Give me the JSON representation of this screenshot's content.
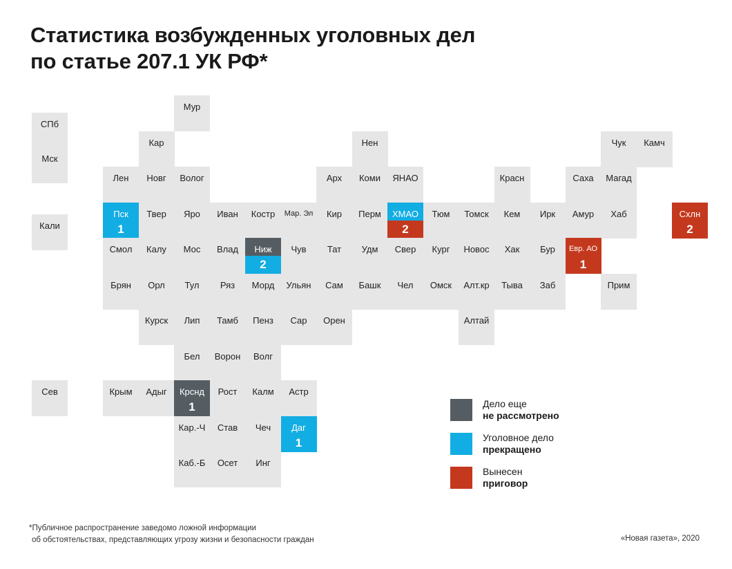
{
  "title": {
    "line1": "Статистика возбужденных уголовных дел",
    "line2": "по статье 207.1 УК РФ*"
  },
  "colors": {
    "empty": "#e6e6e7",
    "pending": "#555d62",
    "closed": "#12ade3",
    "verdict": "#c4391e"
  },
  "regions": [
    {
      "label": "Мур",
      "col": 4,
      "row": 0,
      "status": "none",
      "count": ""
    },
    {
      "label": "СПб",
      "col": 0,
      "row": 0,
      "status": "none",
      "count": ""
    },
    {
      "label": "Мск",
      "col": 0,
      "row": 1,
      "status": "none",
      "count": ""
    },
    {
      "label": "Кар",
      "col": 3,
      "row": 1,
      "status": "none",
      "count": ""
    },
    {
      "label": "Нен",
      "col": 9,
      "row": 1,
      "status": "none",
      "count": ""
    },
    {
      "label": "Чук",
      "col": 16,
      "row": 1,
      "status": "none",
      "count": ""
    },
    {
      "label": "Камч",
      "col": 17,
      "row": 1,
      "status": "none",
      "count": ""
    },
    {
      "label": "Лен",
      "col": 2,
      "row": 2,
      "status": "none",
      "count": ""
    },
    {
      "label": "Новг",
      "col": 3,
      "row": 2,
      "status": "none",
      "count": ""
    },
    {
      "label": "Волог",
      "col": 4,
      "row": 2,
      "status": "none",
      "count": ""
    },
    {
      "label": "Арх",
      "col": 8,
      "row": 2,
      "status": "none",
      "count": ""
    },
    {
      "label": "Коми",
      "col": 9,
      "row": 2,
      "status": "none",
      "count": ""
    },
    {
      "label": "ЯНАО",
      "col": 10,
      "row": 2,
      "status": "none",
      "count": ""
    },
    {
      "label": "Красн",
      "col": 13,
      "row": 2,
      "status": "none",
      "count": ""
    },
    {
      "label": "Саха",
      "col": 15,
      "row": 2,
      "status": "none",
      "count": ""
    },
    {
      "label": "Магад",
      "col": 16,
      "row": 2,
      "status": "none",
      "count": ""
    },
    {
      "label": "Кали",
      "col": 0,
      "row": 3,
      "status": "none",
      "count": ""
    },
    {
      "label": "Пск",
      "col": 2,
      "row": 3,
      "status": "closed",
      "count": "1"
    },
    {
      "label": "Твер",
      "col": 3,
      "row": 3,
      "status": "none",
      "count": ""
    },
    {
      "label": "Яро",
      "col": 4,
      "row": 3,
      "status": "none",
      "count": ""
    },
    {
      "label": "Иван",
      "col": 5,
      "row": 3,
      "status": "none",
      "count": ""
    },
    {
      "label": "Костр",
      "col": 6,
      "row": 3,
      "status": "none",
      "count": ""
    },
    {
      "label": "Мар. Эл",
      "col": 7,
      "row": 3,
      "status": "none",
      "count": "",
      "small": true
    },
    {
      "label": "Кир",
      "col": 8,
      "row": 3,
      "status": "none",
      "count": ""
    },
    {
      "label": "Перм",
      "col": 9,
      "row": 3,
      "status": "none",
      "count": ""
    },
    {
      "label": "ХМАО",
      "col": 10,
      "row": 3,
      "status": "closed+verdict",
      "count": "2"
    },
    {
      "label": "Тюм",
      "col": 11,
      "row": 3,
      "status": "none",
      "count": ""
    },
    {
      "label": "Томск",
      "col": 12,
      "row": 3,
      "status": "none",
      "count": ""
    },
    {
      "label": "Кем",
      "col": 13,
      "row": 3,
      "status": "none",
      "count": ""
    },
    {
      "label": "Ирк",
      "col": 14,
      "row": 3,
      "status": "none",
      "count": ""
    },
    {
      "label": "Амур",
      "col": 15,
      "row": 3,
      "status": "none",
      "count": ""
    },
    {
      "label": "Хаб",
      "col": 16,
      "row": 3,
      "status": "none",
      "count": ""
    },
    {
      "label": "Схлн",
      "col": 18,
      "row": 3,
      "status": "verdict",
      "count": "2"
    },
    {
      "label": "Смол",
      "col": 2,
      "row": 4,
      "status": "none",
      "count": ""
    },
    {
      "label": "Калу",
      "col": 3,
      "row": 4,
      "status": "none",
      "count": ""
    },
    {
      "label": "Мос",
      "col": 4,
      "row": 4,
      "status": "none",
      "count": ""
    },
    {
      "label": "Влад",
      "col": 5,
      "row": 4,
      "status": "none",
      "count": ""
    },
    {
      "label": "Ниж",
      "col": 6,
      "row": 4,
      "status": "pending+closed",
      "count": "2"
    },
    {
      "label": "Чув",
      "col": 7,
      "row": 4,
      "status": "none",
      "count": ""
    },
    {
      "label": "Тат",
      "col": 8,
      "row": 4,
      "status": "none",
      "count": ""
    },
    {
      "label": "Удм",
      "col": 9,
      "row": 4,
      "status": "none",
      "count": ""
    },
    {
      "label": "Свер",
      "col": 10,
      "row": 4,
      "status": "none",
      "count": ""
    },
    {
      "label": "Кург",
      "col": 11,
      "row": 4,
      "status": "none",
      "count": ""
    },
    {
      "label": "Новос",
      "col": 12,
      "row": 4,
      "status": "none",
      "count": ""
    },
    {
      "label": "Хак",
      "col": 13,
      "row": 4,
      "status": "none",
      "count": ""
    },
    {
      "label": "Бур",
      "col": 14,
      "row": 4,
      "status": "none",
      "count": ""
    },
    {
      "label": "Евр. АО",
      "col": 15,
      "row": 4,
      "status": "verdict",
      "count": "1",
      "small": true
    },
    {
      "label": "Брян",
      "col": 2,
      "row": 5,
      "status": "none",
      "count": ""
    },
    {
      "label": "Орл",
      "col": 3,
      "row": 5,
      "status": "none",
      "count": ""
    },
    {
      "label": "Тул",
      "col": 4,
      "row": 5,
      "status": "none",
      "count": ""
    },
    {
      "label": "Ряз",
      "col": 5,
      "row": 5,
      "status": "none",
      "count": ""
    },
    {
      "label": "Морд",
      "col": 6,
      "row": 5,
      "status": "none",
      "count": ""
    },
    {
      "label": "Ульян",
      "col": 7,
      "row": 5,
      "status": "none",
      "count": ""
    },
    {
      "label": "Сам",
      "col": 8,
      "row": 5,
      "status": "none",
      "count": ""
    },
    {
      "label": "Башк",
      "col": 9,
      "row": 5,
      "status": "none",
      "count": ""
    },
    {
      "label": "Чел",
      "col": 10,
      "row": 5,
      "status": "none",
      "count": ""
    },
    {
      "label": "Омск",
      "col": 11,
      "row": 5,
      "status": "none",
      "count": ""
    },
    {
      "label": "Алт.кр",
      "col": 12,
      "row": 5,
      "status": "none",
      "count": ""
    },
    {
      "label": "Тыва",
      "col": 13,
      "row": 5,
      "status": "none",
      "count": ""
    },
    {
      "label": "Заб",
      "col": 14,
      "row": 5,
      "status": "none",
      "count": ""
    },
    {
      "label": "Прим",
      "col": 16,
      "row": 5,
      "status": "none",
      "count": ""
    },
    {
      "label": "Курск",
      "col": 3,
      "row": 6,
      "status": "none",
      "count": ""
    },
    {
      "label": "Лип",
      "col": 4,
      "row": 6,
      "status": "none",
      "count": ""
    },
    {
      "label": "Тамб",
      "col": 5,
      "row": 6,
      "status": "none",
      "count": ""
    },
    {
      "label": "Пенз",
      "col": 6,
      "row": 6,
      "status": "none",
      "count": ""
    },
    {
      "label": "Сар",
      "col": 7,
      "row": 6,
      "status": "none",
      "count": ""
    },
    {
      "label": "Орен",
      "col": 8,
      "row": 6,
      "status": "none",
      "count": ""
    },
    {
      "label": "Алтай",
      "col": 12,
      "row": 6,
      "status": "none",
      "count": ""
    },
    {
      "label": "Бел",
      "col": 4,
      "row": 7,
      "status": "none",
      "count": ""
    },
    {
      "label": "Ворон",
      "col": 5,
      "row": 7,
      "status": "none",
      "count": ""
    },
    {
      "label": "Волг",
      "col": 6,
      "row": 7,
      "status": "none",
      "count": ""
    },
    {
      "label": "Сев",
      "col": 0,
      "row": 8,
      "status": "none",
      "count": ""
    },
    {
      "label": "Крым",
      "col": 2,
      "row": 8,
      "status": "none",
      "count": ""
    },
    {
      "label": "Адыг",
      "col": 3,
      "row": 8,
      "status": "none",
      "count": ""
    },
    {
      "label": "Крснд",
      "col": 4,
      "row": 8,
      "status": "pending",
      "count": "1"
    },
    {
      "label": "Рост",
      "col": 5,
      "row": 8,
      "status": "none",
      "count": ""
    },
    {
      "label": "Калм",
      "col": 6,
      "row": 8,
      "status": "none",
      "count": ""
    },
    {
      "label": "Астр",
      "col": 7,
      "row": 8,
      "status": "none",
      "count": ""
    },
    {
      "label": "Кар.-Ч",
      "col": 4,
      "row": 9,
      "status": "none",
      "count": ""
    },
    {
      "label": "Став",
      "col": 5,
      "row": 9,
      "status": "none",
      "count": ""
    },
    {
      "label": "Чеч",
      "col": 6,
      "row": 9,
      "status": "none",
      "count": ""
    },
    {
      "label": "Даг",
      "col": 7,
      "row": 9,
      "status": "closed",
      "count": "1"
    },
    {
      "label": "Каб.-Б",
      "col": 4,
      "row": 10,
      "status": "none",
      "count": ""
    },
    {
      "label": "Осет",
      "col": 5,
      "row": 10,
      "status": "none",
      "count": ""
    },
    {
      "label": "Инг",
      "col": 6,
      "row": 10,
      "status": "none",
      "count": ""
    }
  ],
  "legend": [
    {
      "status": "pending",
      "line1": "Дело еще",
      "line2": "не рассмотрено"
    },
    {
      "status": "closed",
      "line1": "Уголовное дело",
      "line2": "прекращено"
    },
    {
      "status": "verdict",
      "line1": "Вынесен",
      "line2": "приговор"
    }
  ],
  "footnote": {
    "line1": "*Публичное распространение заведомо ложной информации",
    "line2": "об обстоятельствах, представляющих угрозу жизни и безопасности граждан"
  },
  "credit": "«Новая газета», 2020"
}
